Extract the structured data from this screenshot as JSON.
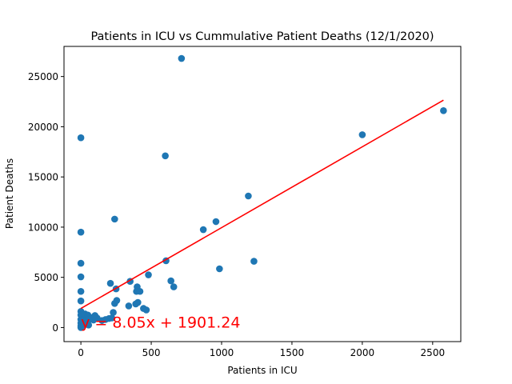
{
  "chart_data": {
    "type": "scatter",
    "title": "Patients in ICU vs Cummulative Patient Deaths (12/1/2020)",
    "xlabel": "Patients in ICU",
    "ylabel": "Patient Deaths",
    "xlim": [
      -120,
      2700
    ],
    "ylim": [
      -1400,
      28000
    ],
    "xticks": [
      0,
      500,
      1000,
      1500,
      2000,
      2500
    ],
    "yticks": [
      0,
      5000,
      10000,
      15000,
      20000,
      25000
    ],
    "grid": false,
    "series_color": "#1f77b4",
    "regression": {
      "slope": 8.05,
      "intercept": 1901.24,
      "x_range": [
        0,
        2577
      ],
      "color": "#ff0000",
      "equation": "y = 8.05x + 1901.24",
      "equation_anchor": [
        0,
        0
      ]
    },
    "points": [
      [
        0,
        18900
      ],
      [
        0,
        9500
      ],
      [
        0,
        6400
      ],
      [
        0,
        5050
      ],
      [
        0,
        3600
      ],
      [
        0,
        2650
      ],
      [
        0,
        1600
      ],
      [
        0,
        1250
      ],
      [
        0,
        800
      ],
      [
        0,
        450
      ],
      [
        0,
        150
      ],
      [
        0,
        0
      ],
      [
        5,
        300
      ],
      [
        10,
        1100
      ],
      [
        15,
        550
      ],
      [
        20,
        250
      ],
      [
        25,
        900
      ],
      [
        30,
        1350
      ],
      [
        40,
        700
      ],
      [
        45,
        350
      ],
      [
        50,
        1250
      ],
      [
        55,
        250
      ],
      [
        60,
        800
      ],
      [
        80,
        1000
      ],
      [
        90,
        750
      ],
      [
        100,
        1200
      ],
      [
        115,
        950
      ],
      [
        150,
        700
      ],
      [
        175,
        800
      ],
      [
        200,
        900
      ],
      [
        210,
        4400
      ],
      [
        220,
        950
      ],
      [
        230,
        1500
      ],
      [
        240,
        10800
      ],
      [
        240,
        2400
      ],
      [
        250,
        3850
      ],
      [
        255,
        2700
      ],
      [
        340,
        2150
      ],
      [
        350,
        4600
      ],
      [
        390,
        2350
      ],
      [
        395,
        3600
      ],
      [
        400,
        4050
      ],
      [
        405,
        2500
      ],
      [
        420,
        3600
      ],
      [
        445,
        1900
      ],
      [
        465,
        1750
      ],
      [
        480,
        5250
      ],
      [
        600,
        17100
      ],
      [
        605,
        6650
      ],
      [
        640,
        4650
      ],
      [
        660,
        4050
      ],
      [
        715,
        26800
      ],
      [
        870,
        9750
      ],
      [
        960,
        10550
      ],
      [
        985,
        5850
      ],
      [
        1190,
        13100
      ],
      [
        1230,
        6600
      ],
      [
        2000,
        19200
      ],
      [
        2577,
        21600
      ]
    ]
  }
}
